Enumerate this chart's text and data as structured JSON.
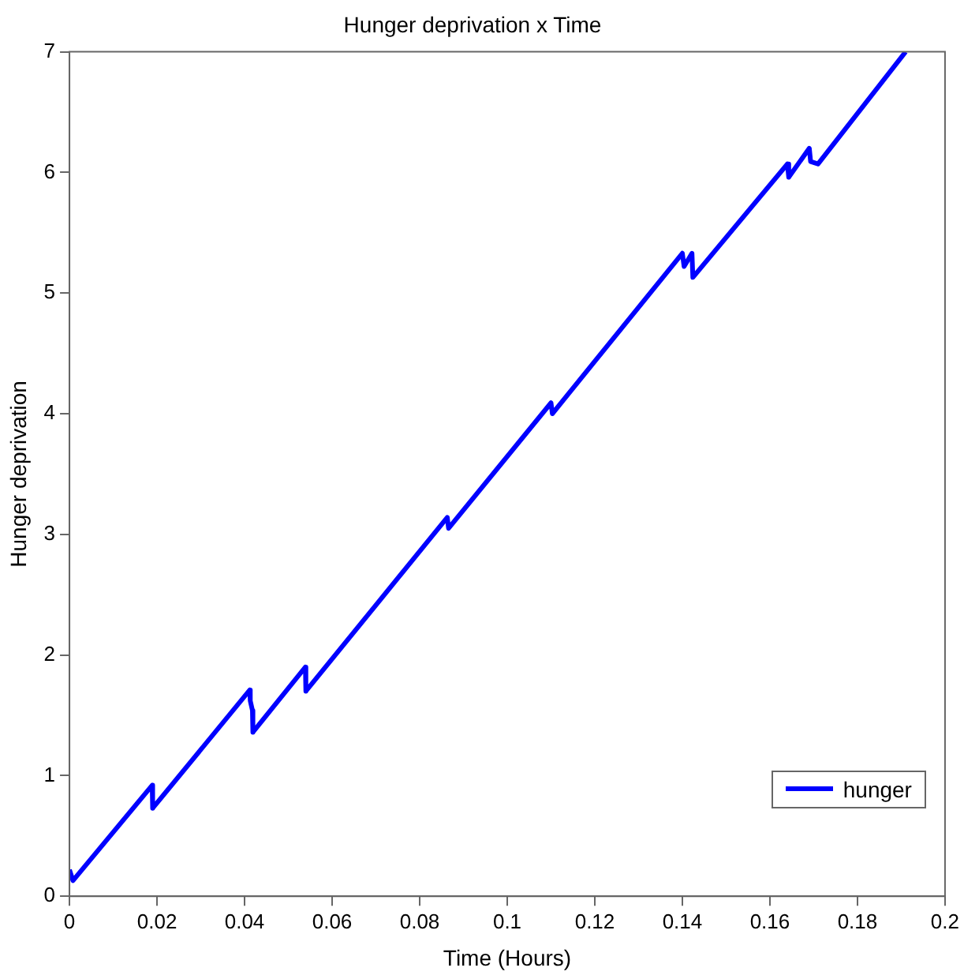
{
  "chart_data": {
    "type": "line",
    "title": "Hunger deprivation x Time",
    "xlabel": "Time (Hours)",
    "ylabel": "Hunger deprivation",
    "xlim": [
      0,
      0.2
    ],
    "xticks": [
      0,
      0.02,
      0.04,
      0.06,
      0.08,
      0.1,
      0.12,
      0.14,
      0.16,
      0.18,
      0.2
    ],
    "ylim": [
      0,
      7
    ],
    "yticks": [
      0,
      1,
      2,
      3,
      4,
      5,
      6,
      7
    ],
    "grid": false,
    "legend": "bottom right",
    "marker": "none",
    "line_style": "solid",
    "series": [
      {
        "name": "hunger",
        "color": "#0000ff",
        "x": [
          0,
          0.0008,
          0.0189,
          0.019,
          0.0412,
          0.0413,
          0.0418,
          0.0419,
          0.0539,
          0.054,
          0.0863,
          0.0866,
          0.11,
          0.1103,
          0.14,
          0.1404,
          0.1422,
          0.1424,
          0.164,
          0.1643,
          0.169,
          0.1693,
          0.171,
          0.191
        ],
        "values": [
          0.22,
          0.13,
          0.92,
          0.73,
          1.71,
          1.62,
          1.54,
          1.36,
          1.9,
          1.7,
          3.14,
          3.05,
          4.09,
          4.0,
          5.33,
          5.22,
          5.33,
          5.13,
          6.07,
          5.96,
          6.2,
          6.09,
          6.07,
          7.0
        ]
      }
    ]
  }
}
